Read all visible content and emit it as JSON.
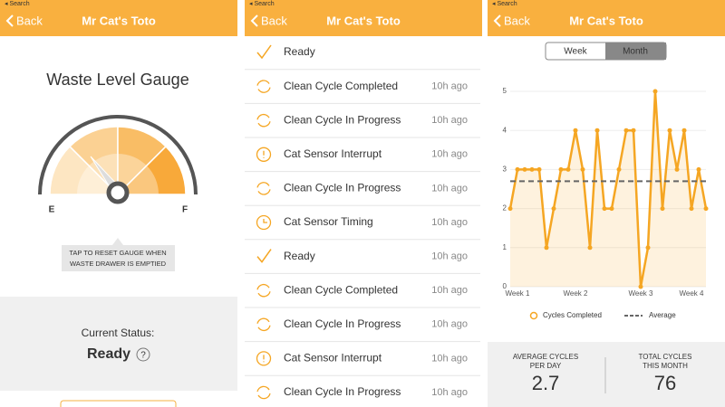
{
  "screens": [
    {
      "status_bar": "◂ Search",
      "back": "Back",
      "title": "Mr Cat's Toto",
      "heading": "Waste Level Gauge",
      "gauge_empty": "E",
      "gauge_full": "F",
      "tooltip": [
        "TAP TO RESET GAUGE WHEN",
        "WASTE DRAWER IS EMPTIED"
      ],
      "status_label": "Current Status:",
      "status_value": "Ready",
      "help": "?"
    },
    {
      "status_bar": "◂ Search",
      "back": "Back",
      "title": "Mr Cat's Toto",
      "events": [
        {
          "label": "Ready",
          "time": null
        },
        {
          "label": "Clean Cycle Completed",
          "time": "10h ago"
        },
        {
          "label": "Clean Cycle In Progress",
          "time": "10h ago"
        },
        {
          "label": "Cat Sensor Interrupt",
          "time": "10h ago"
        },
        {
          "label": "Clean Cycle In Progress",
          "time": "10h ago"
        },
        {
          "label": "Cat Sensor Timing",
          "time": "10h ago"
        },
        {
          "label": "Ready",
          "time": "10h ago"
        },
        {
          "label": "Clean Cycle Completed",
          "time": "10h ago"
        },
        {
          "label": "Clean Cycle In Progress",
          "time": "10h ago"
        },
        {
          "label": "Cat Sensor Interrupt",
          "time": "10h ago"
        },
        {
          "label": "Clean Cycle In Progress",
          "time": "10h ago"
        }
      ]
    },
    {
      "status_bar": "◂ Search",
      "back": "Back",
      "title": "Mr Cat's Toto",
      "tabs": [
        "Week",
        "Month"
      ],
      "stats": [
        {
          "label": [
            "AVERAGE CYCLES",
            "PER DAY"
          ],
          "value": "2.7"
        },
        {
          "label": [
            "TOTAL CYCLES",
            "THIS MONTH"
          ],
          "value": "76"
        }
      ]
    }
  ],
  "chart_data": {
    "type": "line",
    "categories": [
      null,
      "Week 1",
      null,
      null,
      null,
      null,
      null,
      null,
      null,
      "Week 2",
      null,
      null,
      null,
      null,
      null,
      null,
      null,
      null,
      "Week 3",
      null,
      null,
      null,
      null,
      null,
      null,
      "Week 4",
      null,
      null
    ],
    "series": [
      {
        "name": "Cycles Completed",
        "color": "#f5a623",
        "values": [
          2,
          3,
          3,
          3,
          3,
          1,
          2,
          3,
          3,
          4,
          3,
          1,
          4,
          2,
          2,
          3,
          4,
          4,
          0,
          1,
          5,
          2,
          4,
          3,
          4,
          2,
          3,
          2
        ]
      }
    ],
    "average": {
      "name": "Average",
      "value": 2.7,
      "color": "#666"
    },
    "ylim": [
      0,
      5
    ],
    "yticks": [
      0,
      1,
      2,
      3,
      4,
      5
    ],
    "grid": true
  }
}
